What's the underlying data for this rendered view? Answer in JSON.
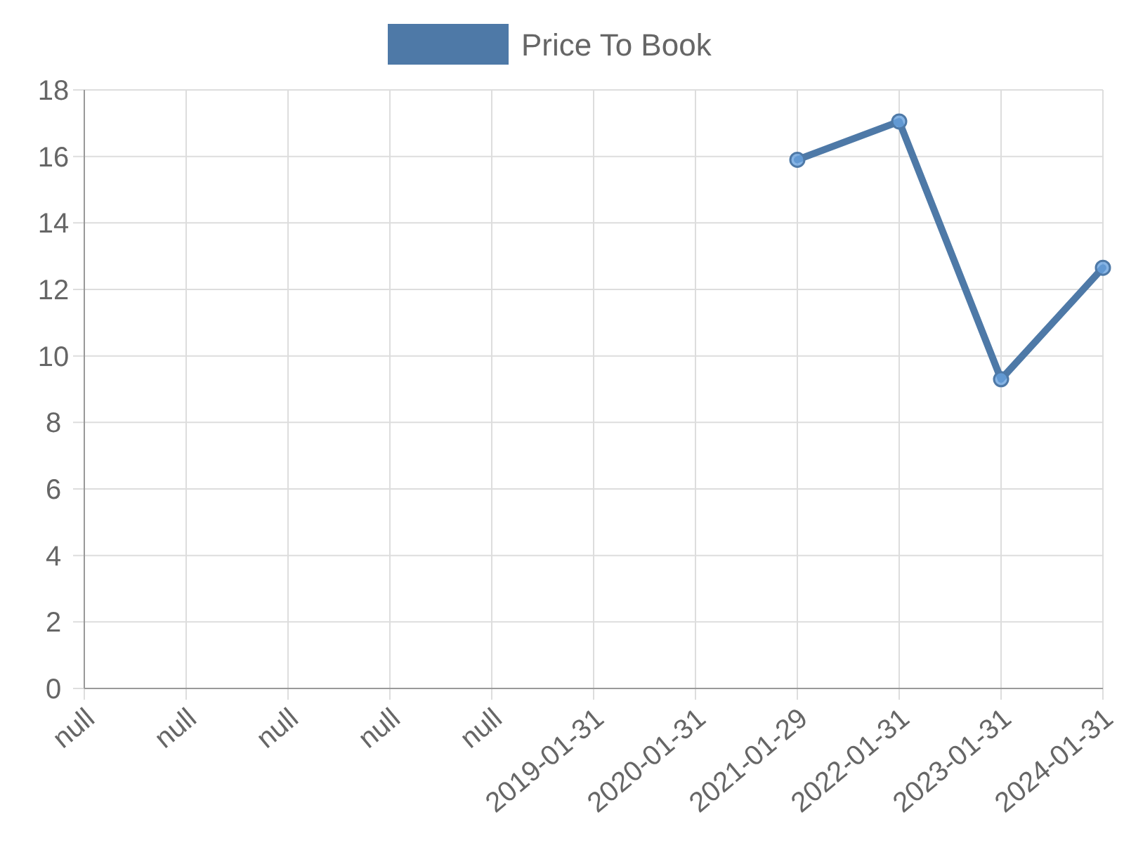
{
  "chart_data": {
    "type": "line",
    "categories": [
      "null",
      "null",
      "null",
      "null",
      "null",
      "2019-01-31",
      "2020-01-31",
      "2021-01-29",
      "2022-01-31",
      "2023-01-31",
      "2024-01-31"
    ],
    "series": [
      {
        "name": "Price To Book",
        "color": "#4e79a7",
        "values": [
          null,
          null,
          null,
          null,
          null,
          null,
          null,
          15.9,
          17.05,
          9.3,
          12.65
        ]
      }
    ],
    "ylim": [
      0,
      18
    ],
    "yticks": [
      0,
      2,
      4,
      6,
      8,
      10,
      12,
      14,
      16,
      18
    ],
    "grid": true,
    "legend": "top",
    "marker": "circle"
  }
}
